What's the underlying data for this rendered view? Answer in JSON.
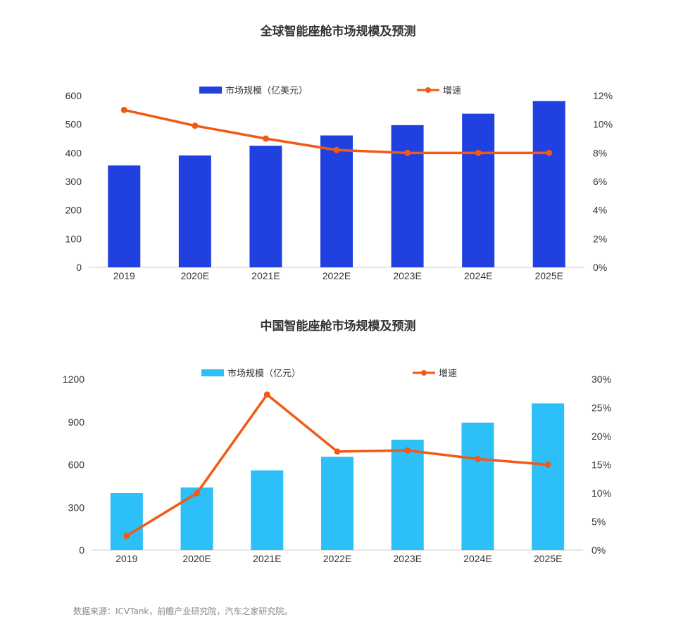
{
  "chart_data": [
    {
      "type": "bar",
      "title": "全球智能座舱市场规模及预测",
      "categories": [
        "2019",
        "2020E",
        "2021E",
        "2022E",
        "2023E",
        "2024E",
        "2025E"
      ],
      "series": [
        {
          "name": "市场规模（亿美元）",
          "type": "bar",
          "axis": "left",
          "values": [
            356,
            391,
            425,
            461,
            497,
            537,
            581
          ]
        },
        {
          "name": "增速",
          "type": "line",
          "axis": "right",
          "values": [
            11.0,
            9.9,
            9.0,
            8.2,
            8.0,
            8.0,
            8.0
          ]
        }
      ],
      "left_axis": {
        "min": 0,
        "max": 600,
        "ticks": [
          "0",
          "100",
          "200",
          "300",
          "400",
          "500",
          "600"
        ]
      },
      "right_axis": {
        "min": 0,
        "max": 12,
        "ticks": [
          "0%",
          "2%",
          "4%",
          "6%",
          "8%",
          "10%",
          "12%"
        ]
      },
      "colors": {
        "bar": "#2040e0",
        "line": "#f05a14"
      },
      "legend": "top"
    },
    {
      "type": "bar",
      "title": "中国智能座舱市场规模及预测",
      "categories": [
        "2019",
        "2020E",
        "2021E",
        "2022E",
        "2023E",
        "2024E",
        "2025E"
      ],
      "series": [
        {
          "name": "市场规模（亿元）",
          "type": "bar",
          "axis": "left",
          "values": [
            400,
            440,
            560,
            655,
            775,
            895,
            1030
          ]
        },
        {
          "name": "增速",
          "type": "line",
          "axis": "right",
          "values": [
            2.5,
            10.0,
            27.3,
            17.3,
            17.5,
            16.0,
            15.0
          ]
        }
      ],
      "left_axis": {
        "min": 0,
        "max": 1200,
        "ticks": [
          "0",
          "300",
          "600",
          "900",
          "1200"
        ]
      },
      "right_axis": {
        "min": 0,
        "max": 30,
        "ticks": [
          "0%",
          "5%",
          "10%",
          "15%",
          "20%",
          "25%",
          "30%"
        ]
      },
      "colors": {
        "bar": "#2cbff8",
        "line": "#f05a14"
      },
      "legend": "top"
    }
  ],
  "source": "数据来源：ICVTank，前瞻产业研究院，汽车之家研究院。"
}
